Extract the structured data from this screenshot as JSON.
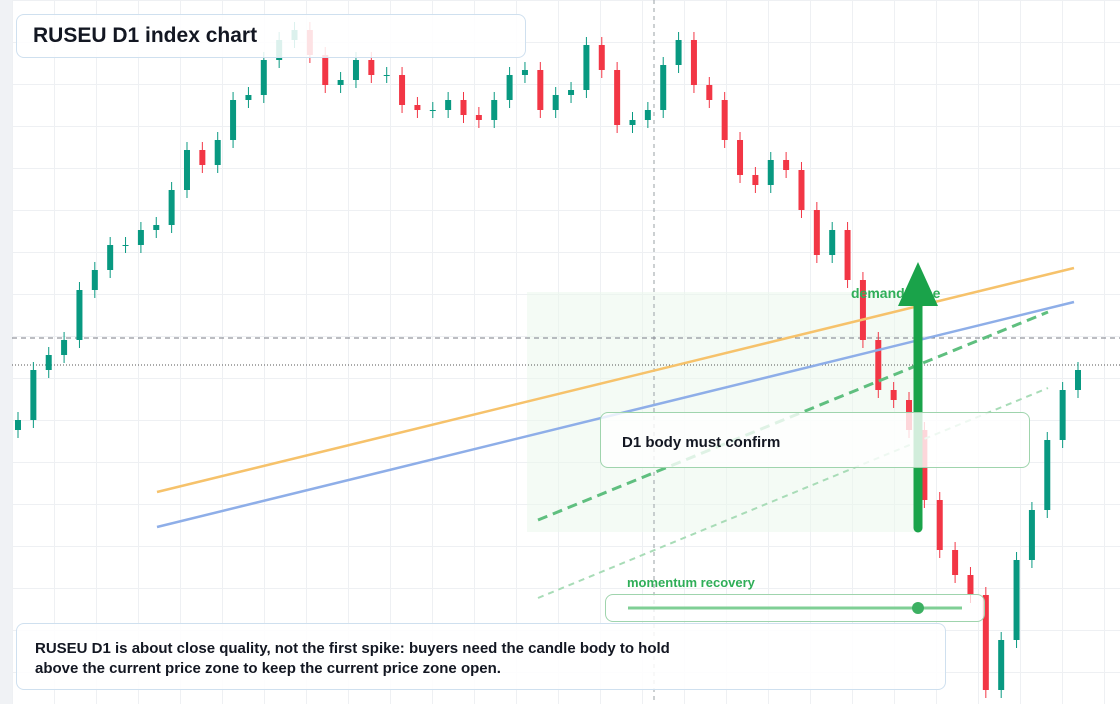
{
  "title": "RUSEU D1 index chart",
  "annotations": {
    "demand_zone": "demand zone",
    "confirm": "D1 body must confirm",
    "momentum": "momentum recovery",
    "note": "RUSEU D1 is about close quality, not the first spike: buyers need the candle body to hold above the current price zone to keep the current price zone open."
  },
  "chart_data": {
    "type": "candlestick",
    "up_color": "#089981",
    "down_color": "#f23645",
    "ylim": [
      0,
      704
    ],
    "open": [
      274,
      284,
      334,
      349,
      364,
      414,
      434,
      459,
      459,
      474,
      479,
      514,
      554,
      539,
      564,
      604,
      609,
      644,
      664,
      674,
      649,
      619,
      624,
      644,
      629,
      629,
      599,
      594,
      594,
      604,
      589,
      584,
      604,
      629,
      634,
      594,
      609,
      614,
      659,
      634,
      579,
      584,
      594,
      639,
      664,
      619,
      604,
      564,
      529,
      519,
      544,
      534,
      494,
      449,
      474,
      424,
      364,
      314,
      304,
      274,
      204,
      154,
      129,
      109,
      14,
      64,
      144,
      194,
      264,
      314
    ],
    "high": [
      292,
      342,
      357,
      372,
      422,
      442,
      467,
      467,
      482,
      487,
      522,
      562,
      562,
      572,
      612,
      617,
      652,
      672,
      682,
      682,
      657,
      632,
      652,
      652,
      637,
      637,
      607,
      602,
      612,
      612,
      597,
      612,
      637,
      642,
      642,
      617,
      622,
      667,
      667,
      642,
      592,
      602,
      647,
      672,
      672,
      627,
      612,
      572,
      537,
      552,
      552,
      542,
      502,
      482,
      482,
      432,
      372,
      322,
      312,
      282,
      212,
      162,
      137,
      117,
      72,
      152,
      202,
      272,
      322,
      342
    ],
    "low": [
      266,
      276,
      326,
      341,
      356,
      406,
      426,
      451,
      451,
      466,
      471,
      506,
      531,
      531,
      556,
      596,
      601,
      636,
      656,
      641,
      611,
      611,
      616,
      621,
      621,
      591,
      586,
      586,
      586,
      581,
      576,
      576,
      596,
      621,
      586,
      586,
      601,
      606,
      626,
      571,
      571,
      576,
      586,
      631,
      611,
      596,
      556,
      521,
      511,
      511,
      526,
      486,
      441,
      441,
      416,
      356,
      306,
      296,
      266,
      196,
      146,
      121,
      101,
      6,
      6,
      56,
      136,
      186,
      256,
      306
    ],
    "close": [
      284,
      334,
      349,
      364,
      414,
      434,
      459,
      459,
      474,
      479,
      514,
      554,
      539,
      564,
      604,
      609,
      644,
      664,
      674,
      649,
      619,
      624,
      644,
      629,
      629,
      599,
      594,
      594,
      604,
      589,
      584,
      604,
      629,
      634,
      594,
      609,
      614,
      659,
      634,
      579,
      584,
      594,
      639,
      664,
      619,
      604,
      564,
      529,
      519,
      544,
      534,
      494,
      449,
      474,
      424,
      364,
      314,
      304,
      274,
      204,
      154,
      129,
      109,
      14,
      64,
      144,
      194,
      264,
      314,
      334
    ]
  }
}
